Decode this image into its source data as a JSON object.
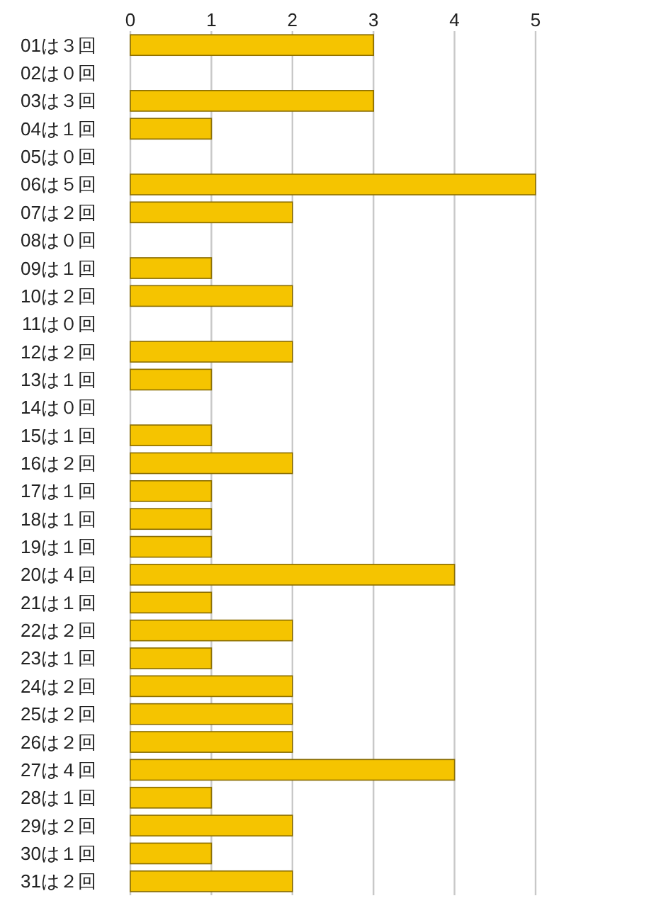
{
  "chart_data": {
    "type": "bar",
    "orientation": "horizontal",
    "categories": [
      "01は３回",
      "02は０回",
      "03は３回",
      "04は１回",
      "05は０回",
      "06は５回",
      "07は２回",
      "08は０回",
      "09は１回",
      "10は２回",
      "11は０回",
      "12は２回",
      "13は１回",
      "14は０回",
      "15は１回",
      "16は２回",
      "17は１回",
      "18は１回",
      "19は１回",
      "20は４回",
      "21は１回",
      "22は２回",
      "23は１回",
      "24は２回",
      "25は２回",
      "26は２回",
      "27は４回",
      "28は１回",
      "29は２回",
      "30は１回",
      "31は２回"
    ],
    "values": [
      3,
      0,
      3,
      1,
      0,
      5,
      2,
      0,
      1,
      2,
      0,
      2,
      1,
      0,
      1,
      2,
      1,
      1,
      1,
      4,
      1,
      2,
      1,
      2,
      2,
      2,
      4,
      1,
      2,
      1,
      2
    ],
    "color": "#f5c400",
    "xlim": [
      0,
      5
    ],
    "xticks": [
      0,
      1,
      2,
      3,
      4,
      5
    ],
    "grid": "x"
  }
}
